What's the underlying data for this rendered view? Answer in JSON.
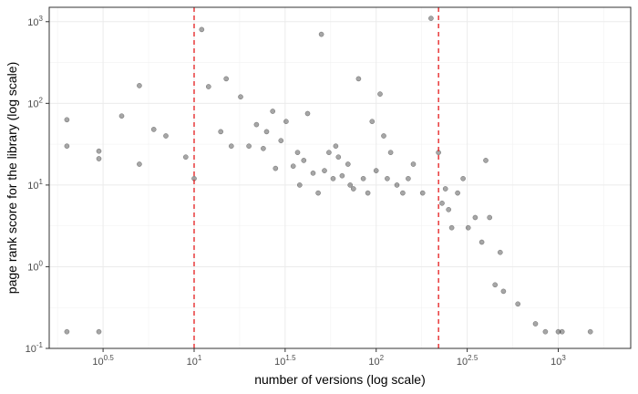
{
  "chart_data": {
    "type": "scatter",
    "title": "",
    "xlabel": "number of versions (log scale)",
    "ylabel": "page rank score for the library (log scale)",
    "x_scale": "log10",
    "y_scale": "log10",
    "xlim": [
      1.6,
      2500
    ],
    "ylim": [
      0.1,
      1500
    ],
    "grid": true,
    "legend": "none",
    "x_ticks": [
      {
        "base": "10",
        "exp": "0.5",
        "value": 3.162
      },
      {
        "base": "10",
        "exp": "1",
        "value": 10
      },
      {
        "base": "10",
        "exp": "1.5",
        "value": 31.62
      },
      {
        "base": "10",
        "exp": "2",
        "value": 100
      },
      {
        "base": "10",
        "exp": "2.5",
        "value": 316.2
      },
      {
        "base": "10",
        "exp": "3",
        "value": 1000
      }
    ],
    "y_ticks": [
      {
        "base": "10",
        "exp": "-1",
        "value": 0.1
      },
      {
        "base": "10",
        "exp": "0",
        "value": 1
      },
      {
        "base": "10",
        "exp": "1",
        "value": 10
      },
      {
        "base": "10",
        "exp": "2",
        "value": 100
      },
      {
        "base": "10",
        "exp": "3",
        "value": 1000
      }
    ],
    "reference_lines": [
      {
        "axis": "x",
        "value": 10,
        "color": "#e41a1c",
        "style": "dashed"
      },
      {
        "axis": "x",
        "value": 220,
        "color": "#e41a1c",
        "style": "dashed"
      }
    ],
    "point_color": "#000000",
    "point_opacity": 0.35,
    "series": [
      {
        "x": [
          2,
          2,
          2,
          3,
          3,
          3,
          4,
          5,
          5,
          6,
          7,
          9,
          10,
          11,
          12,
          14,
          15,
          16,
          18,
          20,
          22,
          24,
          25,
          27,
          28,
          30,
          32,
          35,
          37,
          38,
          40,
          42,
          45,
          48,
          50,
          52,
          55,
          58,
          60,
          62,
          65,
          70,
          72,
          75,
          80,
          85,
          90,
          95,
          100,
          105,
          110,
          115,
          120,
          130,
          140,
          150,
          160,
          180,
          200,
          220,
          230,
          240,
          250,
          260,
          280,
          300,
          320,
          350,
          380,
          400,
          420,
          450,
          480,
          500,
          600,
          750,
          850,
          1000,
          1050,
          1500
        ],
        "y": [
          63,
          30,
          0.16,
          26,
          21,
          0.16,
          70,
          165,
          18,
          48,
          40,
          22,
          12,
          800,
          160,
          45,
          200,
          30,
          120,
          30,
          55,
          28,
          45,
          80,
          16,
          35,
          60,
          17,
          25,
          10,
          20,
          75,
          14,
          8,
          700,
          15,
          25,
          12,
          30,
          22,
          13,
          18,
          10,
          9,
          200,
          12,
          8,
          60,
          15,
          130,
          40,
          12,
          25,
          10,
          8,
          12,
          18,
          8,
          1100,
          25,
          6,
          9,
          5,
          3,
          8,
          12,
          3,
          4,
          2,
          20,
          4,
          0.6,
          1.5,
          0.5,
          0.35,
          0.2,
          0.16,
          0.16,
          0.16,
          0.16
        ]
      }
    ]
  }
}
